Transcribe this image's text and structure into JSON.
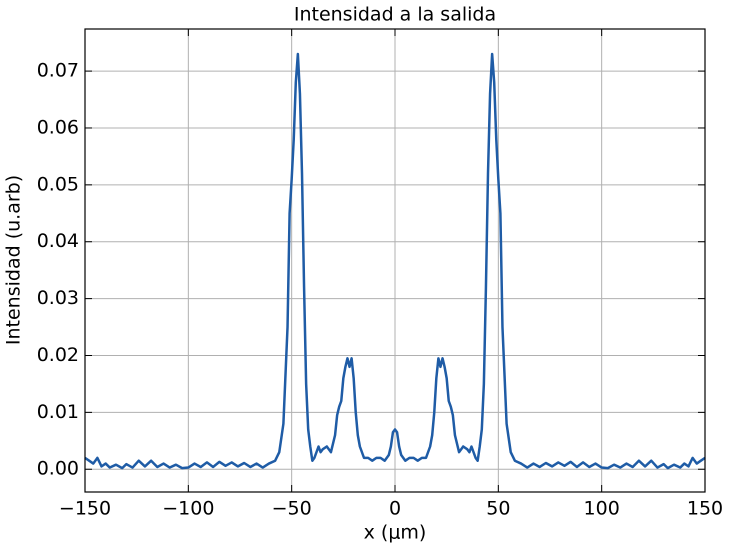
{
  "chart_data": {
    "type": "line",
    "title": "Intensidad a la salida",
    "x_label": "x (μm)",
    "y_label": "Intensidad (u.arb)",
    "x": [
      -150,
      -148,
      -146,
      -144,
      -142,
      -140,
      -138,
      -135,
      -132,
      -130,
      -127,
      -124,
      -121,
      -118,
      -115,
      -112,
      -109,
      -106,
      -103,
      -100,
      -97,
      -94,
      -91,
      -88,
      -85,
      -82,
      -79,
      -76,
      -73,
      -70,
      -67,
      -64,
      -61,
      -58,
      -56,
      -54,
      -52,
      -51,
      -50,
      -49,
      -48,
      -47,
      -46,
      -45,
      -44,
      -43,
      -42,
      -41,
      -40,
      -39,
      -37,
      -36,
      -35,
      -33,
      -31,
      -29,
      -28,
      -27,
      -26,
      -25,
      -24,
      -23,
      -22,
      -21,
      -20,
      -19,
      -18,
      -17,
      -15,
      -13,
      -11,
      -9,
      -7,
      -5,
      -3,
      -2,
      -1,
      0,
      1,
      2,
      3,
      5,
      7,
      9,
      11,
      13,
      15,
      17,
      18,
      19,
      20,
      21,
      22,
      23,
      24,
      25,
      26,
      27,
      28,
      29,
      31,
      33,
      35,
      36,
      37,
      39,
      40,
      41,
      42,
      43,
      44,
      45,
      46,
      47,
      48,
      49,
      50,
      51,
      52,
      54,
      56,
      58,
      61,
      64,
      67,
      70,
      73,
      76,
      79,
      82,
      85,
      88,
      91,
      94,
      97,
      100,
      103,
      106,
      109,
      112,
      115,
      118,
      121,
      124,
      127,
      130,
      132,
      135,
      138,
      140,
      142,
      144,
      146,
      148,
      150
    ],
    "series": [
      {
        "name": "Intensidad",
        "color": "#1f5ca6",
        "values": [
          0.002,
          0.0015,
          0.001,
          0.002,
          0.0005,
          0.001,
          0.0003,
          0.0008,
          0.0002,
          0.0009,
          0.0003,
          0.0015,
          0.0005,
          0.0015,
          0.0004,
          0.001,
          0.0003,
          0.0008,
          0.0002,
          0.0003,
          0.001,
          0.0004,
          0.0012,
          0.0004,
          0.0013,
          0.0006,
          0.0012,
          0.0005,
          0.0011,
          0.0004,
          0.001,
          0.0003,
          0.001,
          0.0015,
          0.003,
          0.008,
          0.025,
          0.045,
          0.051,
          0.058,
          0.068,
          0.073,
          0.066,
          0.052,
          0.032,
          0.015,
          0.007,
          0.004,
          0.0015,
          0.002,
          0.004,
          0.003,
          0.0035,
          0.004,
          0.003,
          0.006,
          0.0095,
          0.011,
          0.012,
          0.016,
          0.018,
          0.0195,
          0.018,
          0.0195,
          0.016,
          0.01,
          0.006,
          0.004,
          0.002,
          0.002,
          0.0015,
          0.002,
          0.002,
          0.0015,
          0.0025,
          0.004,
          0.0065,
          0.007,
          0.0065,
          0.004,
          0.0025,
          0.0015,
          0.002,
          0.002,
          0.0015,
          0.002,
          0.002,
          0.004,
          0.006,
          0.01,
          0.016,
          0.0195,
          0.018,
          0.0195,
          0.018,
          0.016,
          0.012,
          0.011,
          0.0095,
          0.006,
          0.003,
          0.004,
          0.0035,
          0.003,
          0.004,
          0.002,
          0.0015,
          0.004,
          0.007,
          0.015,
          0.032,
          0.052,
          0.066,
          0.073,
          0.068,
          0.058,
          0.051,
          0.045,
          0.025,
          0.008,
          0.003,
          0.0015,
          0.001,
          0.0003,
          0.001,
          0.0004,
          0.0011,
          0.0005,
          0.0012,
          0.0006,
          0.0013,
          0.0004,
          0.0012,
          0.0004,
          0.001,
          0.0003,
          0.0002,
          0.0008,
          0.0003,
          0.001,
          0.0004,
          0.0015,
          0.0005,
          0.0015,
          0.0003,
          0.0009,
          0.0002,
          0.0008,
          0.0003,
          0.001,
          0.0005,
          0.002,
          0.001,
          0.0015,
          0.002
        ]
      }
    ],
    "xlim": [
      -150,
      150
    ],
    "ylim": [
      -0.004,
      0.0774
    ],
    "xticks": [
      {
        "value": -150,
        "label": "−150"
      },
      {
        "value": -100,
        "label": "−100"
      },
      {
        "value": -50,
        "label": "−50"
      },
      0,
      50,
      100,
      150
    ],
    "yticks": [
      {
        "value": 0,
        "label": "0.00"
      },
      {
        "value": 0.01,
        "label": "0.01"
      },
      {
        "value": 0.02,
        "label": "0.02"
      },
      {
        "value": 0.03,
        "label": "0.03"
      },
      {
        "value": 0.04,
        "label": "0.04"
      },
      {
        "value": 0.05,
        "label": "0.05"
      },
      {
        "value": 0.06,
        "label": "0.06"
      },
      {
        "value": 0.07,
        "label": "0.07"
      }
    ],
    "grid": true
  }
}
